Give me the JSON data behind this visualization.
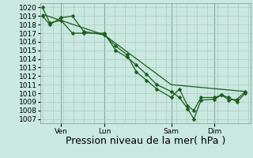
{
  "xlabel": "Pression niveau de la mer( hPa )",
  "bg_color": "#c8e8e0",
  "grid_color": "#b0c8c0",
  "line_color": "#1a5c1a",
  "ylim": [
    1006.5,
    1020.5
  ],
  "ytick_vals": [
    1007,
    1008,
    1009,
    1010,
    1011,
    1012,
    1013,
    1014,
    1015,
    1016,
    1017,
    1018,
    1019,
    1020
  ],
  "xtick_labels": [
    "Ven",
    "Lun",
    "Sam",
    "Dim"
  ],
  "xtick_x": [
    0.09,
    0.3,
    0.625,
    0.835
  ],
  "vline_x": [
    0.09,
    0.3,
    0.625,
    0.835
  ],
  "line1_x": [
    0.0,
    0.035,
    0.09,
    0.145,
    0.2,
    0.3,
    0.355,
    0.41,
    0.455,
    0.505,
    0.555,
    0.625,
    0.665,
    0.705,
    0.735,
    0.77,
    0.835,
    0.87,
    0.905,
    0.945,
    0.985
  ],
  "line1_y": [
    1020.0,
    1018.2,
    1018.5,
    1017.0,
    1017.0,
    1017.0,
    1015.0,
    1014.2,
    1013.3,
    1012.2,
    1011.0,
    1010.2,
    1009.5,
    1008.2,
    1007.0,
    1009.2,
    1009.3,
    1009.8,
    1009.2,
    1009.3,
    1010.2
  ],
  "line2_x": [
    0.0,
    0.035,
    0.09,
    0.145,
    0.2,
    0.3,
    0.355,
    0.41,
    0.455,
    0.505,
    0.555,
    0.625,
    0.665,
    0.705,
    0.735,
    0.77,
    0.835,
    0.87,
    0.905,
    0.945,
    0.985
  ],
  "line2_y": [
    1019.0,
    1018.0,
    1018.8,
    1019.0,
    1017.2,
    1016.8,
    1015.5,
    1014.5,
    1012.5,
    1011.5,
    1010.5,
    1009.5,
    1010.5,
    1008.5,
    1008.0,
    1009.5,
    1009.5,
    1009.8,
    1009.5,
    1009.0,
    1010.0
  ],
  "line3_x": [
    0.0,
    0.3,
    0.625,
    0.985
  ],
  "line3_y": [
    1019.2,
    1016.8,
    1011.0,
    1010.2
  ],
  "xlabel_fontsize": 9,
  "tick_fontsize": 6.5,
  "marker_size": 2.5,
  "linewidth": 0.9
}
